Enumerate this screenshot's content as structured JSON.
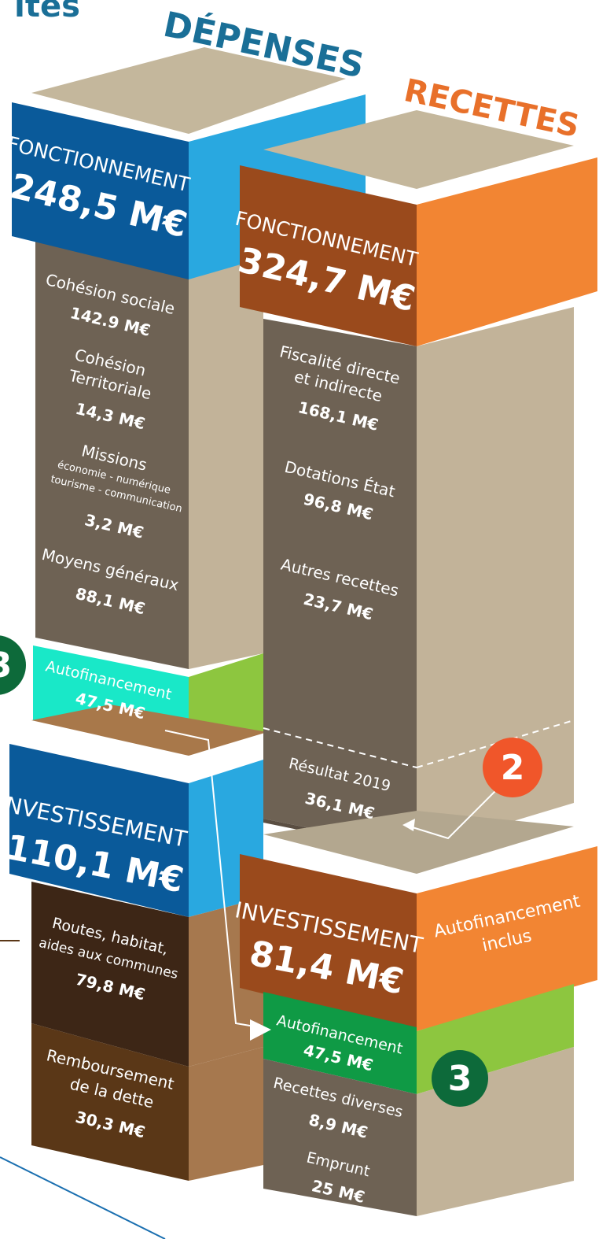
{
  "header": {
    "cropped_text": "ites",
    "depenses": "DÉPENSES",
    "recettes": "RECETTES"
  },
  "depenses": {
    "fonctionnement": {
      "title": "FONCTIONNEMENT",
      "amount": "248,5 M€",
      "items": [
        {
          "label": [
            "Cohésion sociale"
          ],
          "amount": "142.9 M€"
        },
        {
          "label": [
            "Cohésion",
            "Territoriale"
          ],
          "amount": "14,3 M€"
        },
        {
          "label": [
            "Missions",
            "économie - numérique",
            "tourisme - communication"
          ],
          "amount": "3,2 M€"
        },
        {
          "label": [
            "Moyens généraux"
          ],
          "amount": "88,1 M€"
        }
      ]
    },
    "autofinancement": {
      "label": "Autofinancement",
      "amount": "47,5 M€",
      "badge": "3"
    },
    "investissement": {
      "title": "INVESTISSEMENT",
      "amount": "110,1 M€",
      "items": [
        {
          "label": [
            "Routes, habitat,",
            "aides aux communes"
          ],
          "amount": "79,8 M€"
        },
        {
          "label": [
            "Remboursement",
            "de la dette"
          ],
          "amount": "30,3 M€"
        }
      ]
    }
  },
  "recettes": {
    "fonctionnement": {
      "title": "FONCTIONNEMENT",
      "amount": "324,7 M€",
      "items": [
        {
          "label": [
            "Fiscalité directe",
            "et indirecte"
          ],
          "amount": "168,1 M€"
        },
        {
          "label": [
            "Dotations État"
          ],
          "amount": "96,8 M€"
        },
        {
          "label": [
            "Autres recettes"
          ],
          "amount": "23,7 M€"
        }
      ],
      "resultat": {
        "label": "Résultat 2019",
        "amount": "36,1 M€",
        "badge": "2"
      }
    },
    "investissement": {
      "title": "INVESTISSEMENT",
      "amount": "81,4 M€",
      "note": [
        "Autofinancement",
        "inclus"
      ],
      "autofinancement": {
        "label": "Autofinancement",
        "amount": "47,5 M€",
        "badge": "3"
      },
      "items": [
        {
          "label": [
            "Recettes diverses"
          ],
          "amount": "8,9 M€"
        },
        {
          "label": [
            "Emprunt"
          ],
          "amount": "25 M€"
        }
      ]
    }
  }
}
